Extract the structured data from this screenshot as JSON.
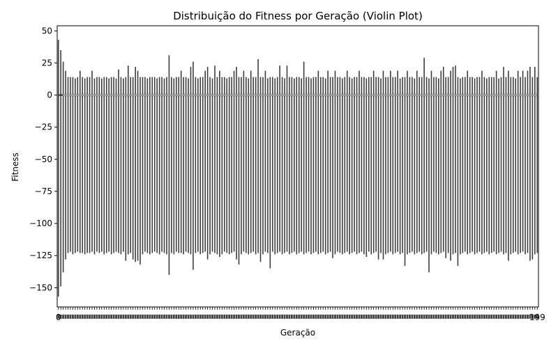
{
  "chart_data": {
    "type": "violin",
    "title": "Distribuição do Fitness por Geração (Violin Plot)",
    "xlabel": "Geração",
    "ylabel": "Fitness",
    "ylim": [
      -165,
      54
    ],
    "yticks": [
      50,
      25,
      0,
      -25,
      -50,
      -75,
      -100,
      -125,
      -150
    ],
    "ytick_labels": [
      "50",
      "25",
      "0",
      "−25",
      "−50",
      "−75",
      "−100",
      "−125",
      "−150"
    ],
    "xlim": [
      0,
      199
    ],
    "x_first_tick_label": "0",
    "x_last_tick_label": "199",
    "grid": false,
    "legend": "none",
    "colors": {
      "violin": "#3d3d3d",
      "median_line": "#ffffff",
      "axes": "#000000"
    },
    "generations": {
      "count": 200,
      "min_fitness": [
        -157,
        -149,
        -138,
        -128,
        -123,
        -122,
        -124,
        -123,
        -122,
        -123,
        -123,
        -124,
        -123,
        -123,
        -122,
        -124,
        -122,
        -123,
        -122,
        -124,
        -123,
        -122,
        -124,
        -123,
        -122,
        -123,
        -124,
        -122,
        -129,
        -124,
        -123,
        -128,
        -130,
        -129,
        -132,
        -124,
        -122,
        -123,
        -124,
        -123,
        -122,
        -123,
        -124,
        -122,
        -123,
        -124,
        -140,
        -123,
        -124,
        -122,
        -123,
        -123,
        -124,
        -122,
        -123,
        -124,
        -136,
        -123,
        -122,
        -124,
        -123,
        -122,
        -128,
        -124,
        -122,
        -123,
        -124,
        -126,
        -124,
        -122,
        -123,
        -124,
        -123,
        -122,
        -128,
        -132,
        -124,
        -122,
        -123,
        -124,
        -123,
        -122,
        -124,
        -123,
        -130,
        -124,
        -122,
        -123,
        -135,
        -122,
        -124,
        -123,
        -122,
        -124,
        -123,
        -122,
        -124,
        -123,
        -122,
        -124,
        -123,
        -122,
        -124,
        -123,
        -122,
        -124,
        -123,
        -122,
        -124,
        -123,
        -122,
        -124,
        -123,
        -122,
        -127,
        -124,
        -122,
        -123,
        -124,
        -123,
        -122,
        -124,
        -123,
        -122,
        -124,
        -123,
        -122,
        -124,
        -126,
        -122,
        -124,
        -123,
        -122,
        -128,
        -123,
        -128,
        -124,
        -123,
        -122,
        -124,
        -123,
        -122,
        -124,
        -123,
        -133,
        -124,
        -123,
        -122,
        -124,
        -123,
        -122,
        -124,
        -123,
        -122,
        -138,
        -124,
        -122,
        -123,
        -124,
        -123,
        -122,
        -127,
        -123,
        -129,
        -124,
        -123,
        -133,
        -124,
        -123,
        -122,
        -124,
        -123,
        -122,
        -124,
        -123,
        -122,
        -124,
        -123,
        -122,
        -124,
        -123,
        -122,
        -124,
        -123,
        -122,
        -124,
        -123,
        -129,
        -124,
        -123,
        -122,
        -124,
        -123,
        -122,
        -124,
        -123,
        -129,
        -128,
        -124,
        -123
      ],
      "max_fitness": [
        43,
        35,
        26,
        19,
        14,
        14,
        14,
        13,
        14,
        19,
        14,
        13,
        14,
        14,
        19,
        13,
        14,
        14,
        13,
        14,
        14,
        13,
        14,
        14,
        13,
        20,
        14,
        13,
        14,
        23,
        14,
        14,
        22,
        19,
        14,
        14,
        14,
        13,
        14,
        14,
        14,
        13,
        14,
        14,
        13,
        14,
        31,
        14,
        13,
        14,
        14,
        19,
        14,
        14,
        13,
        22,
        26,
        14,
        13,
        14,
        14,
        19,
        22,
        14,
        13,
        23,
        14,
        19,
        14,
        14,
        13,
        14,
        14,
        19,
        22,
        14,
        14,
        19,
        14,
        13,
        19,
        14,
        14,
        28,
        14,
        14,
        19,
        13,
        14,
        14,
        13,
        14,
        23,
        14,
        13,
        23,
        14,
        14,
        13,
        14,
        14,
        13,
        26,
        14,
        14,
        13,
        14,
        14,
        19,
        14,
        14,
        13,
        19,
        14,
        14,
        19,
        14,
        14,
        13,
        14,
        19,
        14,
        13,
        14,
        14,
        19,
        14,
        14,
        13,
        14,
        14,
        19,
        14,
        14,
        13,
        19,
        14,
        14,
        19,
        14,
        14,
        19,
        13,
        14,
        14,
        19,
        14,
        14,
        13,
        19,
        14,
        14,
        29,
        14,
        13,
        19,
        14,
        14,
        13,
        19,
        22,
        14,
        14,
        19,
        22,
        23,
        14,
        13,
        14,
        14,
        19,
        14,
        14,
        13,
        14,
        14,
        19,
        14,
        13,
        14,
        14,
        14,
        19,
        13,
        14,
        22,
        14,
        19,
        14,
        14,
        13,
        19,
        14,
        19,
        14,
        19,
        22,
        14,
        22,
        14
      ],
      "median_fitness_all": 0
    }
  }
}
